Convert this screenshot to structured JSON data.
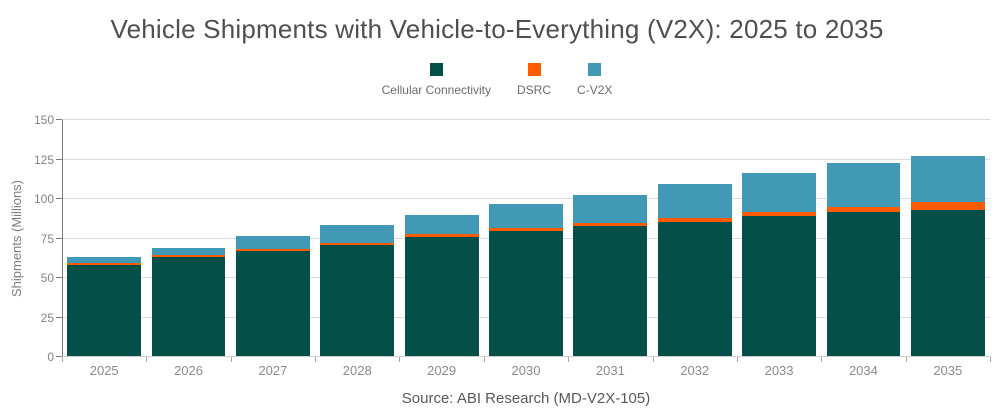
{
  "source_note": "Source: ABI Research (MD-V2X-105)",
  "colors": {
    "title_text": "#4f4f4f",
    "axis_text": "#848484",
    "gridline": "#dadada",
    "axis_line": "#7a7a7a",
    "cellular": "#045049",
    "dsrc": "#fe5a00",
    "cv2x": "#4299b5"
  },
  "chart_data": {
    "type": "bar",
    "stacked": true,
    "title": "Vehicle Shipments with Vehicle-to-Everything (V2X): 2025 to 2035",
    "xlabel": "",
    "ylabel": "Shipments (Millions)",
    "ylim": [
      0,
      150
    ],
    "ytick_step": 25,
    "grid": true,
    "legend_position": "top",
    "categories": [
      "2025",
      "2026",
      "2027",
      "2028",
      "2029",
      "2030",
      "2031",
      "2032",
      "2033",
      "2034",
      "2035"
    ],
    "series": [
      {
        "name": "Cellular Connectivity",
        "color": "#045049",
        "values": [
          58.5,
          63.3,
          67.2,
          71.0,
          76.0,
          80.0,
          83.0,
          85.5,
          89.0,
          91.5,
          93.0
        ]
      },
      {
        "name": "DSRC",
        "color": "#fe5a00",
        "values": [
          1.3,
          1.4,
          1.4,
          1.2,
          1.6,
          1.7,
          1.9,
          2.5,
          2.6,
          3.5,
          5.0
        ]
      },
      {
        "name": "C-V2X",
        "color": "#4299b5",
        "values": [
          3.8,
          4.0,
          8.0,
          11.3,
          12.2,
          14.9,
          17.5,
          21.5,
          25.0,
          27.9,
          29.5
        ]
      }
    ],
    "totals": [
      63.6,
      68.7,
      76.6,
      83.5,
      89.8,
      96.6,
      102.4,
      109.5,
      116.6,
      122.9,
      127.5
    ]
  }
}
